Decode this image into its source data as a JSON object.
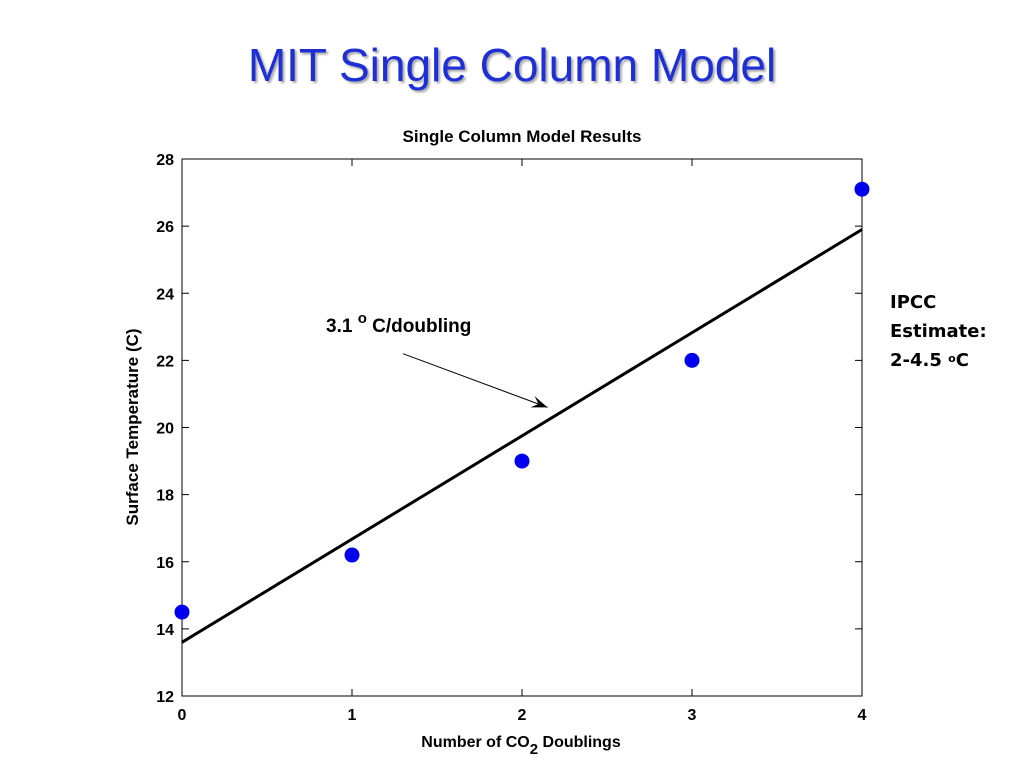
{
  "slide": {
    "title": "MIT Single Column Model"
  },
  "side_note": {
    "line1": "IPCC",
    "line2": "Estimate:",
    "line3_prefix": "2-4.5 ",
    "line3_sup": "o",
    "line3_suffix": "C"
  },
  "colors": {
    "title": "#1f2fd6",
    "points": "#0000ee",
    "fit_line": "#000000"
  },
  "chart_data": {
    "type": "scatter",
    "title": "Single Column Model Results",
    "xlabel_main": "Number of CO",
    "xlabel_sub": "2",
    "xlabel_end": " Doublings",
    "ylabel": "Surface Temperature (C)",
    "xlim": [
      0,
      4
    ],
    "ylim": [
      12,
      28
    ],
    "x_ticks": [
      0,
      1,
      2,
      3,
      4
    ],
    "y_ticks": [
      12,
      14,
      16,
      18,
      20,
      22,
      24,
      26,
      28
    ],
    "grid": false,
    "series": [
      {
        "x": [
          0,
          1,
          2,
          3,
          4
        ],
        "y": [
          14.5,
          16.2,
          19.0,
          22.0,
          27.1
        ]
      }
    ],
    "fit_line": {
      "x": [
        0,
        4
      ],
      "y": [
        13.6,
        25.9
      ]
    },
    "annotation": {
      "text_main": "3.1 ",
      "text_degree": "o",
      "text_end": " C/doubling",
      "arrow_from": [
        1.3,
        22.2
      ],
      "arrow_to": [
        2.15,
        20.6
      ]
    }
  }
}
